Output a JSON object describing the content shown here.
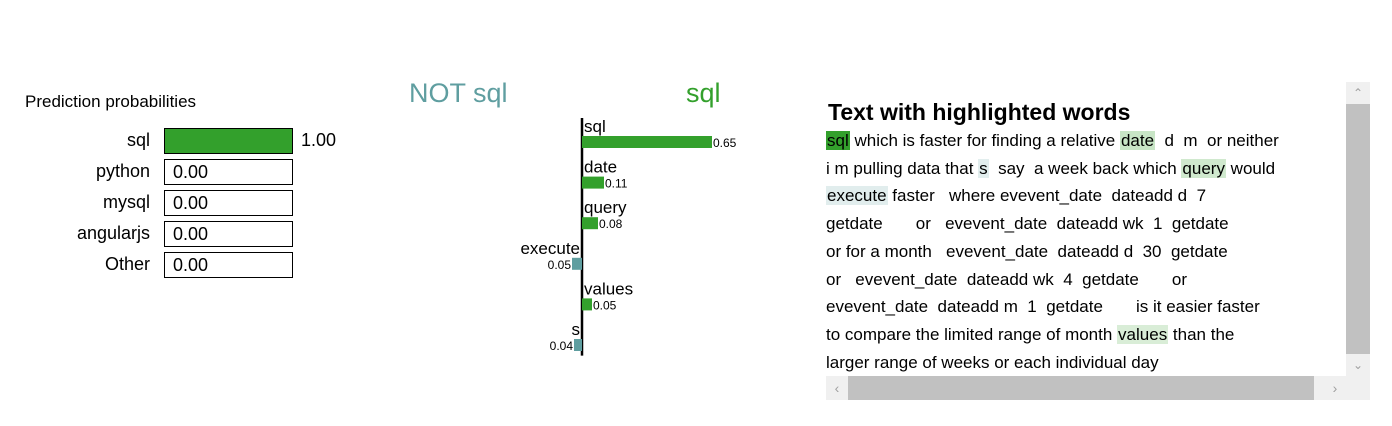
{
  "probabilities": {
    "title": "Prediction probabilities",
    "items": [
      {
        "label": "sql",
        "value": 1.0,
        "display": "1.00"
      },
      {
        "label": "python",
        "value": 0.0,
        "display": "0.00"
      },
      {
        "label": "mysql",
        "value": 0.0,
        "display": "0.00"
      },
      {
        "label": "angularjs",
        "value": 0.0,
        "display": "0.00"
      },
      {
        "label": "Other",
        "value": 0.0,
        "display": "0.00"
      }
    ]
  },
  "chart_data": {
    "type": "bar",
    "orientation": "horizontal",
    "negative_class": "NOT sql",
    "positive_class": "sql",
    "features": [
      {
        "name": "sql",
        "weight": 0.65,
        "label": "0.65"
      },
      {
        "name": "date",
        "weight": 0.11,
        "label": "0.11"
      },
      {
        "name": "query",
        "weight": 0.08,
        "label": "0.08"
      },
      {
        "name": "execute",
        "weight": -0.05,
        "label": "0.05"
      },
      {
        "name": "values",
        "weight": 0.05,
        "label": "0.05"
      },
      {
        "name": "s",
        "weight": -0.04,
        "label": "0.04"
      }
    ],
    "colors": {
      "positive": "#33a02c",
      "negative": "#5f9ea0"
    }
  },
  "text_panel": {
    "title": "Text with highlighted words",
    "lines": [
      [
        {
          "t": "sql",
          "w": 0.65
        },
        {
          "t": " which is faster for finding a relative "
        },
        {
          "t": "date",
          "w": 0.11
        },
        {
          "t": "  d  m  or neither"
        }
      ],
      [
        {
          "t": "i m pulling data that "
        },
        {
          "t": "s",
          "w": -0.04
        },
        {
          "t": "  say  a week back which "
        },
        {
          "t": "query",
          "w": 0.08
        },
        {
          "t": " would"
        }
      ],
      [
        {
          "t": "execute",
          "w": -0.05
        },
        {
          "t": " faster   where evevent_date  dateadd d  7"
        }
      ],
      [
        {
          "t": "getdate       or   evevent_date  dateadd wk  1  getdate"
        }
      ],
      [
        {
          "t": "or for a month   evevent_date  dateadd d  30  getdate"
        }
      ],
      [
        {
          "t": "or   evevent_date  dateadd wk  4  getdate       or"
        }
      ],
      [
        {
          "t": "evevent_date  dateadd m  1  getdate       is it easier faster"
        }
      ],
      [
        {
          "t": "to compare the limited range of month "
        },
        {
          "t": "values",
          "w": 0.05
        },
        {
          "t": " than the"
        }
      ],
      [
        {
          "t": "larger range of weeks or each individual day"
        }
      ]
    ]
  },
  "icons": {
    "scroll_up": "chevron-up-icon",
    "scroll_down": "chevron-down-icon",
    "scroll_left": "chevron-left-icon",
    "scroll_right": "chevron-right-icon"
  }
}
